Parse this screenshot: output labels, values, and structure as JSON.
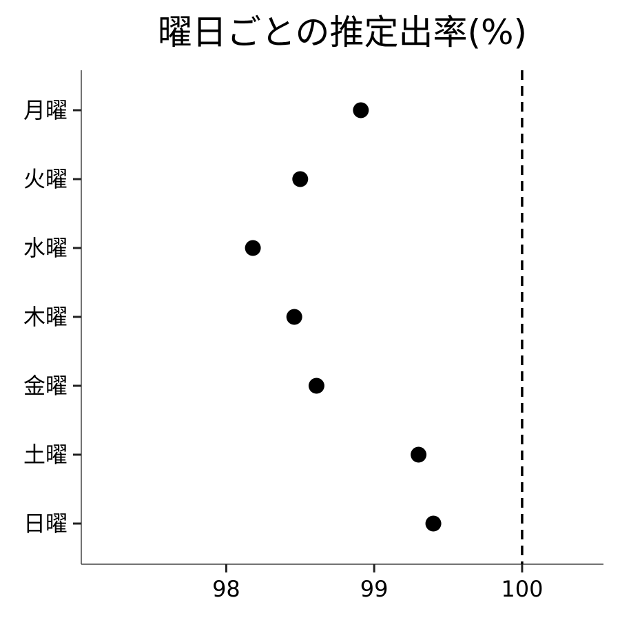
{
  "chart_data": {
    "type": "scatter",
    "title": "曜日ごとの推定出率(%)",
    "xlabel": "",
    "ylabel": "",
    "categories": [
      "月曜",
      "火曜",
      "水曜",
      "木曜",
      "金曜",
      "土曜",
      "日曜"
    ],
    "values": [
      98.91,
      98.5,
      98.18,
      98.46,
      98.61,
      99.3,
      99.4
    ],
    "xlim": [
      97.02,
      100.55
    ],
    "xticks": [
      "98",
      "99",
      "100"
    ],
    "reference_line": {
      "x": 100,
      "style": "dashed"
    },
    "grid": false,
    "legend": "none",
    "colors": {
      "points": "#000000",
      "axis": "#444444"
    }
  }
}
